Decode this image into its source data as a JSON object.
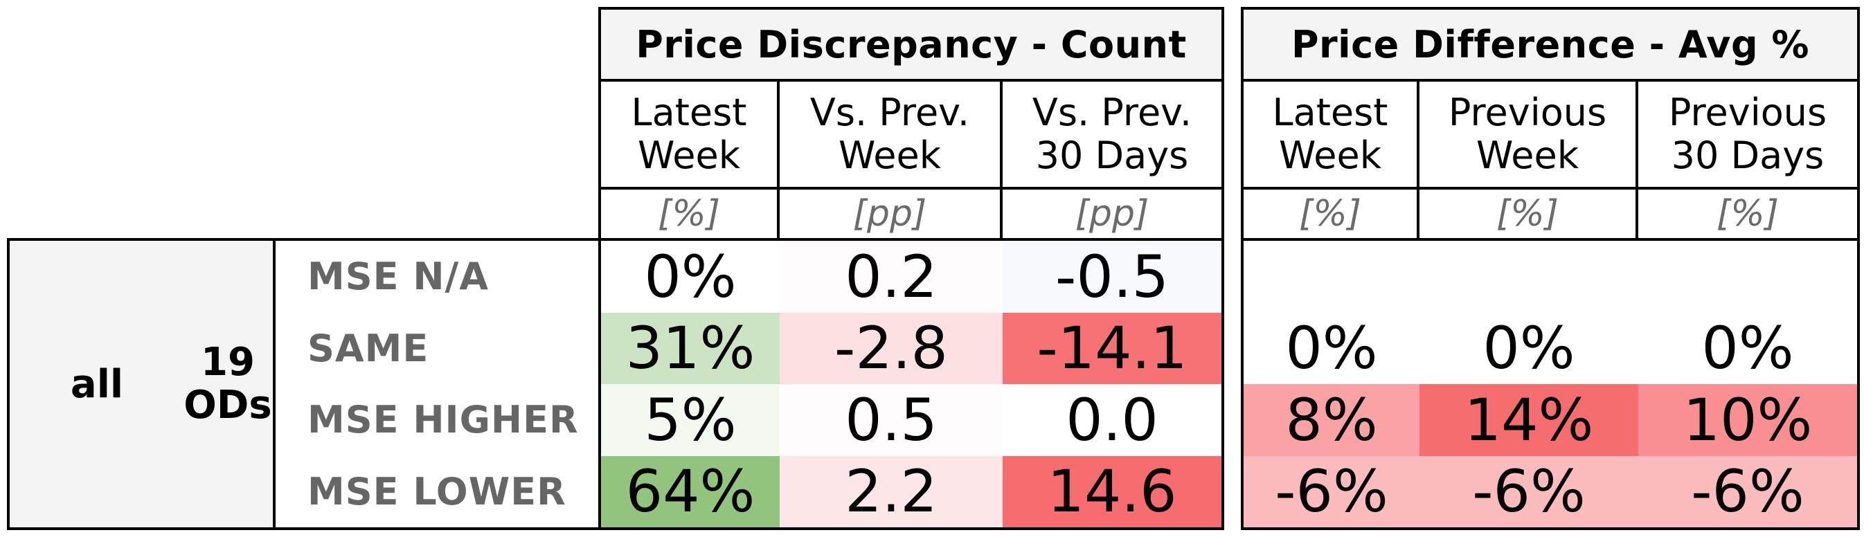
{
  "groups": [
    {
      "title": "Price Discrepancy - Count",
      "columns": [
        {
          "label_line1": "Latest",
          "label_line2": "Week",
          "unit": "[%]"
        },
        {
          "label_line1": "Vs. Prev.",
          "label_line2": "Week",
          "unit": "[pp]"
        },
        {
          "label_line1": "Vs. Prev.",
          "label_line2": "30 Days",
          "unit": "[pp]"
        }
      ]
    },
    {
      "title": "Price Difference - Avg %",
      "columns": [
        {
          "label_line1": "Latest",
          "label_line2": "Week",
          "unit": "[%]"
        },
        {
          "label_line1": "Previous",
          "label_line2": "Week",
          "unit": "[%]"
        },
        {
          "label_line1": "Previous",
          "label_line2": "30 Days",
          "unit": "[%]"
        }
      ]
    }
  ],
  "segment": {
    "label": "all",
    "od_count": "19",
    "od_label": "ODs"
  },
  "rows": [
    {
      "label": "MSE N/A",
      "cells": [
        {
          "text": "0%",
          "color": "#ffffff"
        },
        {
          "text": "0.2",
          "color": "#fefcfc"
        },
        {
          "text": "-0.5",
          "color": "#f8f9fa"
        },
        {
          "text": "",
          "color": "#ffffff"
        },
        {
          "text": "",
          "color": "#ffffff"
        },
        {
          "text": "",
          "color": "#ffffff"
        }
      ]
    },
    {
      "label": "SAME",
      "cells": [
        {
          "text": "31%",
          "color": "#cde4c4"
        },
        {
          "text": "-2.8",
          "color": "#fde1e2"
        },
        {
          "text": "-14.1",
          "color": "#f77275"
        },
        {
          "text": "0%",
          "color": "#ffffff"
        },
        {
          "text": "0%",
          "color": "#ffffff"
        },
        {
          "text": "0%",
          "color": "#ffffff"
        }
      ]
    },
    {
      "label": "MSE HIGHER",
      "cells": [
        {
          "text": "5%",
          "color": "#f3f8f1"
        },
        {
          "text": "0.5",
          "color": "#fefcfc"
        },
        {
          "text": "0.0",
          "color": "#ffffff"
        },
        {
          "text": "8%",
          "color": "#fba2a4"
        },
        {
          "text": "14%",
          "color": "#f66d70"
        },
        {
          "text": "10%",
          "color": "#f98f91"
        }
      ]
    },
    {
      "label": "MSE LOWER",
      "cells": [
        {
          "text": "64%",
          "color": "#93c47d"
        },
        {
          "text": "2.2",
          "color": "#fde6e7"
        },
        {
          "text": "14.6",
          "color": "#f76c6f"
        },
        {
          "text": "-6%",
          "color": "#fcbbbc"
        },
        {
          "text": "-6%",
          "color": "#fcbbbc"
        },
        {
          "text": "-6%",
          "color": "#fcbbbc"
        }
      ]
    }
  ]
}
